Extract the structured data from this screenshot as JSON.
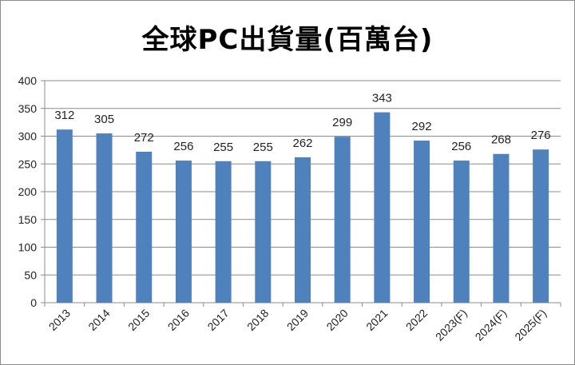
{
  "chart_data": {
    "type": "bar",
    "title": "全球PC出貨量(百萬台)",
    "categories": [
      "2013",
      "2014",
      "2015",
      "2016",
      "2017",
      "2018",
      "2019",
      "2020",
      "2021",
      "2022",
      "2023(F)",
      "2024(F)",
      "2025(F)"
    ],
    "values": [
      312,
      305,
      272,
      256,
      255,
      255,
      262,
      299,
      343,
      292,
      256,
      268,
      276
    ],
    "ylim": [
      0,
      400
    ],
    "yticks": [
      0,
      50,
      100,
      150,
      200,
      250,
      300,
      350,
      400
    ],
    "grid": true,
    "legend": "none",
    "bar_color": "#4f81bd",
    "grid_color": "#8c8c8c"
  }
}
